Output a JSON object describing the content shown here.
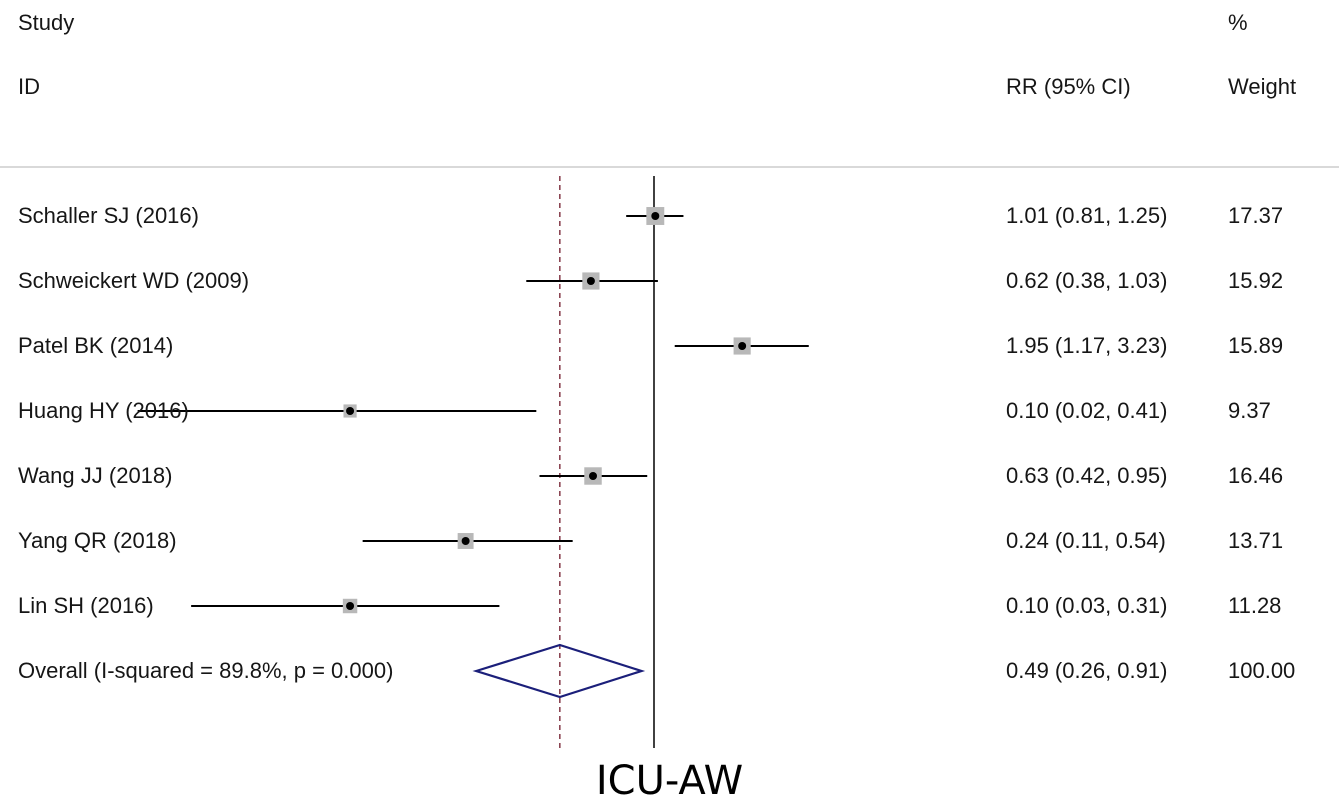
{
  "header": {
    "study_line1": "Study",
    "study_line2": "ID",
    "ci_header": "RR (95% CI)",
    "weight_line1": "%",
    "weight_line2": "Weight"
  },
  "caption": "ICU-AW",
  "colors": {
    "marker": "#000000",
    "weight_box": "#b8b8b8",
    "diamond": "#1b1f7a",
    "dashed_line": "#7a2a3a",
    "header_rule": "#d9d9d9"
  },
  "chart_data": {
    "type": "forest",
    "measure": "RR",
    "null_value": 1,
    "scale": "log",
    "studies": [
      {
        "label": "Schaller SJ (2016)",
        "rr": 1.01,
        "lower": 0.81,
        "upper": 1.25,
        "ci_text": "1.01 (0.81, 1.25)",
        "weight": 17.37,
        "weight_text": "17.37"
      },
      {
        "label": "Schweickert WD (2009)",
        "rr": 0.62,
        "lower": 0.38,
        "upper": 1.03,
        "ci_text": "0.62 (0.38, 1.03)",
        "weight": 15.92,
        "weight_text": "15.92"
      },
      {
        "label": "Patel BK (2014)",
        "rr": 1.95,
        "lower": 1.17,
        "upper": 3.23,
        "ci_text": "1.95 (1.17, 3.23)",
        "weight": 15.89,
        "weight_text": "15.89"
      },
      {
        "label": "Huang HY (2016)",
        "rr": 0.1,
        "lower": 0.02,
        "upper": 0.41,
        "ci_text": "0.10 (0.02, 0.41)",
        "weight": 9.37,
        "weight_text": "9.37"
      },
      {
        "label": "Wang JJ (2018)",
        "rr": 0.63,
        "lower": 0.42,
        "upper": 0.95,
        "ci_text": "0.63 (0.42, 0.95)",
        "weight": 16.46,
        "weight_text": "16.46"
      },
      {
        "label": "Yang QR (2018)",
        "rr": 0.24,
        "lower": 0.11,
        "upper": 0.54,
        "ci_text": "0.24 (0.11, 0.54)",
        "weight": 13.71,
        "weight_text": "13.71"
      },
      {
        "label": "Lin SH (2016)",
        "rr": 0.1,
        "lower": 0.03,
        "upper": 0.31,
        "ci_text": "0.10 (0.03, 0.31)",
        "weight": 11.28,
        "weight_text": "11.28"
      }
    ],
    "overall": {
      "label": "Overall  (I-squared = 89.8%, p = 0.000)",
      "rr": 0.49,
      "lower": 0.26,
      "upper": 0.91,
      "ci_text": "0.49 (0.26, 0.91)",
      "weight": 100.0,
      "weight_text": "100.00"
    }
  }
}
